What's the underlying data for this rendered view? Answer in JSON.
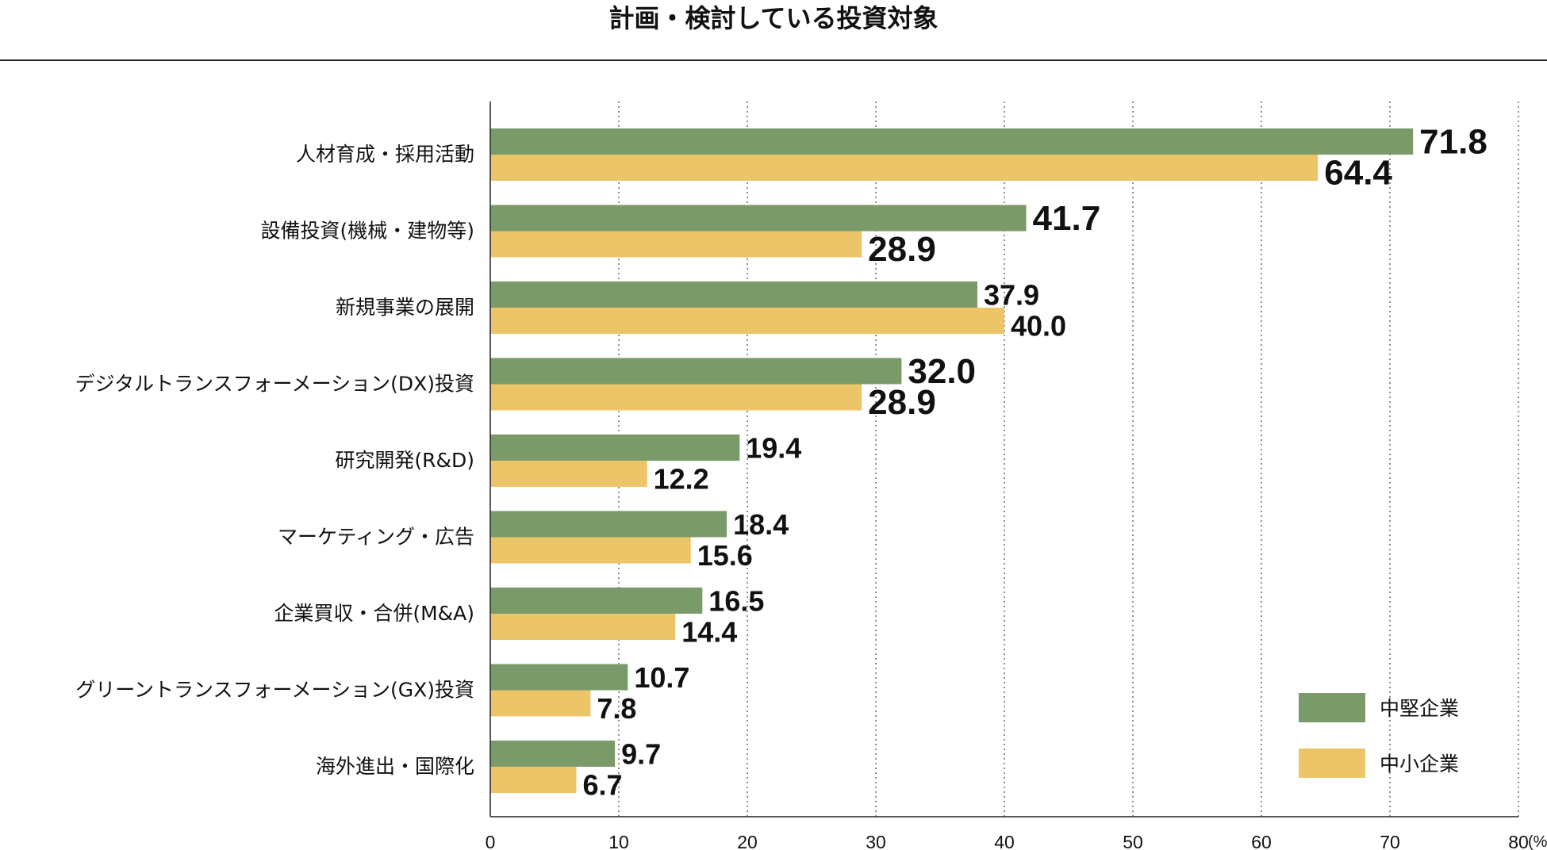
{
  "chart_data": {
    "type": "bar",
    "orientation": "horizontal",
    "title": "計画・検討している投資対象",
    "unit": "(%)",
    "xlim": [
      0,
      80
    ],
    "xticks": [
      0,
      10,
      20,
      30,
      40,
      50,
      60,
      70,
      80
    ],
    "grid": "vertical-dotted",
    "legend_position": "bottom-right",
    "categories": [
      "人材育成・採用活動",
      "設備投資(機械・建物等)",
      "新規事業の展開",
      "デジタルトランスフォーメーション(DX)投資",
      "研究開発(R&D)",
      "マーケティング・広告",
      "企業買収・合併(M&A)",
      "グリーントランスフォーメーション(GX)投資",
      "海外進出・国際化"
    ],
    "series": [
      {
        "name": "中堅企業",
        "color": "#7a9a6a",
        "values": [
          71.8,
          41.7,
          37.9,
          32.0,
          19.4,
          18.4,
          16.5,
          10.7,
          9.7
        ],
        "labels": [
          "71.8",
          "41.7",
          "37.9",
          "32.0",
          "19.4",
          "18.4",
          "16.5",
          "10.7",
          "9.7"
        ]
      },
      {
        "name": "中小企業",
        "color": "#ecc568",
        "values": [
          64.4,
          28.9,
          40.0,
          28.9,
          12.2,
          15.6,
          14.4,
          7.8,
          6.7
        ],
        "labels": [
          "64.4",
          "28.9",
          "40.0",
          "28.9",
          "12.2",
          "15.6",
          "14.4",
          "7.8",
          "6.7"
        ]
      }
    ],
    "highlighted_categories": [
      0,
      1,
      3
    ],
    "highlight_color": "#b01515",
    "label_color": "#111111"
  }
}
